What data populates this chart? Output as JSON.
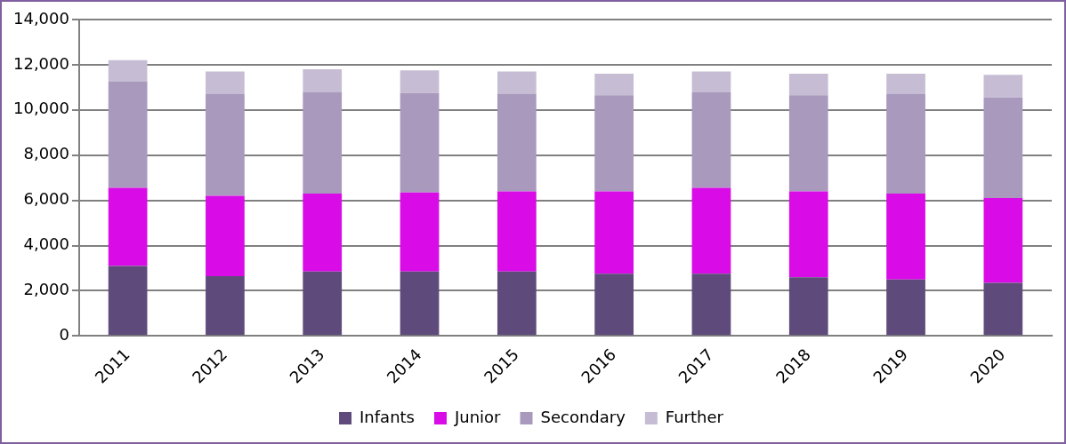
{
  "chart_data": {
    "type": "bar",
    "stacked": true,
    "categories": [
      "2011",
      "2012",
      "2013",
      "2014",
      "2015",
      "2016",
      "2017",
      "2018",
      "2019",
      "2020"
    ],
    "series": [
      {
        "name": "Infants",
        "color": "#5f4b7b",
        "values": [
          3100,
          2650,
          2850,
          2850,
          2850,
          2750,
          2750,
          2600,
          2500,
          2350
        ]
      },
      {
        "name": "Junior",
        "color": "#d90be6",
        "values": [
          3450,
          3550,
          3450,
          3500,
          3550,
          3650,
          3800,
          3800,
          3800,
          3750
        ]
      },
      {
        "name": "Secondary",
        "color": "#a899bd",
        "values": [
          4700,
          4500,
          4500,
          4400,
          4300,
          4250,
          4250,
          4250,
          4400,
          4450
        ]
      },
      {
        "name": "Further",
        "color": "#c6bdd4",
        "values": [
          950,
          1000,
          1000,
          1000,
          1000,
          950,
          900,
          950,
          900,
          1000
        ]
      }
    ],
    "ylim": [
      0,
      14000
    ],
    "yticks": [
      {
        "value": 0,
        "label": "0"
      },
      {
        "value": 2000,
        "label": "2,000"
      },
      {
        "value": 4000,
        "label": "4,000"
      },
      {
        "value": 6000,
        "label": "6,000"
      },
      {
        "value": 8000,
        "label": "8,000"
      },
      {
        "value": 10000,
        "label": "10,000"
      },
      {
        "value": 12000,
        "label": "12,000"
      },
      {
        "value": 14000,
        "label": "14,000"
      }
    ],
    "grid": "y",
    "legend": "bottom"
  }
}
